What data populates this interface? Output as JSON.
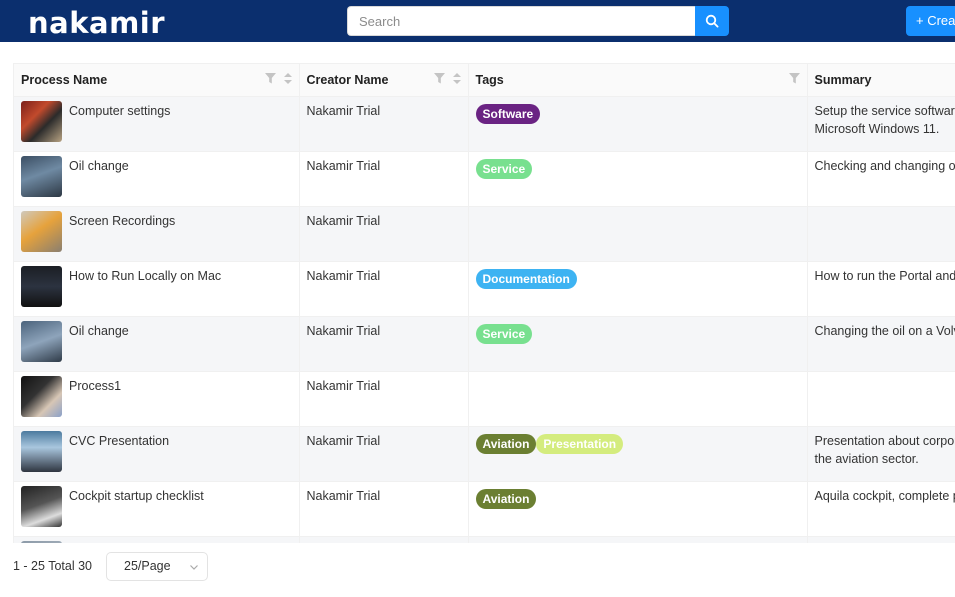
{
  "header": {
    "logo_text": "nakamir",
    "search_placeholder": "Search",
    "create_label": "+ Create"
  },
  "table": {
    "columns": [
      "Process Name",
      "Creator Name",
      "Tags",
      "Summary"
    ],
    "rows": [
      {
        "name": "Computer settings",
        "creator": "Nakamir Trial",
        "tags": [
          {
            "label": "Software",
            "color": "#6a2383"
          }
        ],
        "summary": [
          "Setup the service software",
          "Microsoft Windows 11."
        ]
      },
      {
        "name": "Oil change",
        "creator": "Nakamir Trial",
        "tags": [
          {
            "label": "Service",
            "color": "#78e08f"
          }
        ],
        "summary": [
          "Checking and changing oil"
        ]
      },
      {
        "name": "Screen Recordings",
        "creator": "Nakamir Trial",
        "tags": [],
        "summary": []
      },
      {
        "name": "How to Run Locally on Mac",
        "creator": "Nakamir Trial",
        "tags": [
          {
            "label": "Documentation",
            "color": "#3db3f2"
          }
        ],
        "summary": [
          "How to run the Portal and"
        ]
      },
      {
        "name": "Oil change",
        "creator": "Nakamir Trial",
        "tags": [
          {
            "label": "Service",
            "color": "#78e08f"
          }
        ],
        "summary": [
          "Changing the oil on a Volvo"
        ]
      },
      {
        "name": "Process1",
        "creator": "Nakamir Trial",
        "tags": [],
        "summary": []
      },
      {
        "name": "CVC Presentation",
        "creator": "Nakamir Trial",
        "tags": [
          {
            "label": "Aviation",
            "color": "#6b7f32"
          },
          {
            "label": "Presentation",
            "color": "#d4ec7e"
          }
        ],
        "summary": [
          "Presentation about corpora",
          "the aviation sector."
        ]
      },
      {
        "name": "Cockpit startup checklist",
        "creator": "Nakamir Trial",
        "tags": [
          {
            "label": "Aviation",
            "color": "#6b7f32"
          }
        ],
        "summary": [
          "Aquila cockpit, complete pr"
        ]
      },
      {
        "name": "",
        "creator": "",
        "tags": [
          {
            "label": "",
            "color": "#6b7f32"
          }
        ],
        "summary": []
      }
    ]
  },
  "pagination": {
    "range_text": "1 - 25 Total 30",
    "page_size": "25/Page"
  },
  "colors": {
    "header_bg": "#0b2f6e",
    "primary": "#1890ff"
  }
}
